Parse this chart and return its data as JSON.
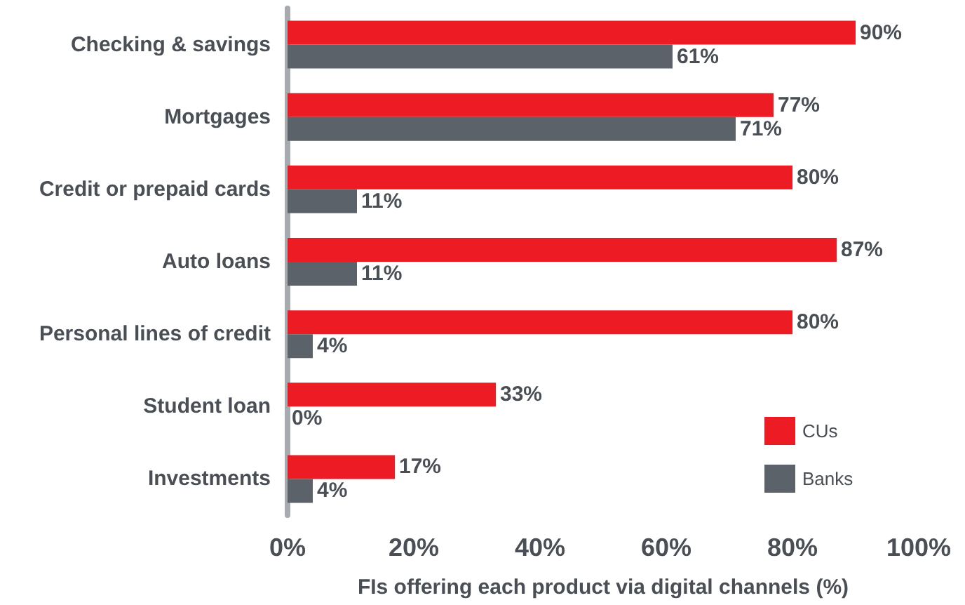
{
  "chart_data": {
    "type": "bar",
    "orientation": "horizontal",
    "xlabel": "FIs offering each product via digital channels (%)",
    "categories": [
      "Checking & savings",
      "Mortgages",
      "Credit or prepaid cards",
      "Auto loans",
      "Personal lines of credit",
      "Student loan",
      "Investments"
    ],
    "series": [
      {
        "name": "CUs",
        "color": "#ed1c24",
        "values": [
          90,
          77,
          80,
          87,
          80,
          33,
          17
        ],
        "value_labels": [
          "90%",
          "77%",
          "80%",
          "87%",
          "80%",
          "33%",
          "17%"
        ]
      },
      {
        "name": "Banks",
        "color": "#5b6269",
        "values": [
          61,
          71,
          11,
          11,
          4,
          0,
          4
        ],
        "value_labels": [
          "61%",
          "71%",
          "11%",
          "11%",
          "4%",
          "0%",
          "4%"
        ]
      }
    ],
    "xlim": [
      0,
      100
    ],
    "xticks": [
      {
        "value": 0,
        "label": "0%"
      },
      {
        "value": 20,
        "label": "20%"
      },
      {
        "value": 40,
        "label": "40%"
      },
      {
        "value": 60,
        "label": "60%"
      },
      {
        "value": 80,
        "label": "80%"
      },
      {
        "value": 100,
        "label": "100%"
      }
    ],
    "grid": false,
    "legend": "bottom right"
  }
}
